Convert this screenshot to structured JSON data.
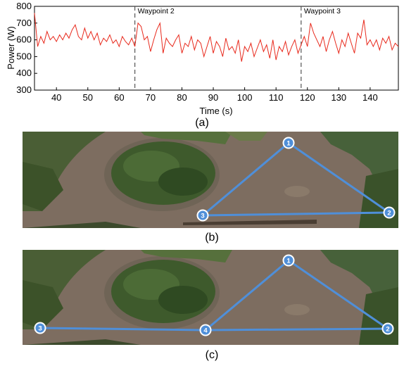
{
  "chart_data": {
    "type": "line",
    "ylabel": "Power (W)",
    "xlabel": "Time (s)",
    "xlim": [
      33,
      149
    ],
    "ylim": [
      300,
      800
    ],
    "xticks": [
      40,
      50,
      60,
      70,
      80,
      90,
      100,
      110,
      120,
      130,
      140
    ],
    "yticks": [
      300,
      400,
      500,
      600,
      700,
      800
    ],
    "grid": false,
    "series_color": "#e8291c",
    "series": [
      {
        "x": [
          33,
          34,
          35,
          36,
          37,
          38,
          39,
          40,
          41,
          42,
          43,
          44,
          45,
          46,
          47,
          48,
          49,
          50,
          51,
          52,
          53,
          54,
          55,
          56,
          57,
          58,
          59,
          60,
          61,
          62,
          63,
          64,
          65,
          66,
          67,
          68,
          69,
          70,
          71,
          72,
          73,
          74,
          75,
          76,
          77,
          78,
          79,
          80,
          81,
          82,
          83,
          84,
          85,
          86,
          87,
          88,
          89,
          90,
          91,
          92,
          93,
          94,
          95,
          96,
          97,
          98,
          99,
          100,
          101,
          102,
          103,
          104,
          105,
          106,
          107,
          108,
          109,
          110,
          111,
          112,
          113,
          114,
          115,
          116,
          117,
          118,
          119,
          120,
          121,
          122,
          123,
          124,
          125,
          126,
          127,
          128,
          129,
          130,
          131,
          132,
          133,
          134,
          135,
          136,
          137,
          138,
          139,
          140,
          141,
          142,
          143,
          144,
          145,
          146,
          147,
          148,
          149
        ],
        "y": [
          760,
          560,
          620,
          580,
          650,
          600,
          620,
          590,
          630,
          600,
          640,
          610,
          660,
          690,
          620,
          600,
          670,
          610,
          650,
          600,
          640,
          570,
          610,
          590,
          630,
          580,
          600,
          560,
          620,
          590,
          570,
          610,
          560,
          700,
          680,
          600,
          620,
          530,
          600,
          660,
          700,
          520,
          610,
          580,
          560,
          600,
          630,
          520,
          580,
          560,
          620,
          540,
          600,
          580,
          500,
          560,
          620,
          520,
          590,
          560,
          500,
          610,
          540,
          560,
          520,
          600,
          470,
          560,
          530,
          580,
          500,
          550,
          600,
          530,
          570,
          490,
          600,
          480,
          560,
          530,
          590,
          510,
          560,
          600,
          520,
          570,
          620,
          560,
          700,
          640,
          600,
          560,
          620,
          530,
          600,
          650,
          580,
          520,
          600,
          560,
          640,
          580,
          520,
          640,
          610,
          720,
          570,
          600,
          560,
          600,
          540,
          610,
          580,
          620,
          540,
          580,
          560
        ]
      }
    ],
    "annotations": [
      "Waypoint 2",
      "Waypoint 3"
    ],
    "annotation_x": [
      65,
      118
    ]
  },
  "captions": {
    "a": "(a)",
    "b": "(b)",
    "c": "(c)"
  },
  "maps": {
    "b": {
      "waypoints": [
        "1",
        "2",
        "3"
      ]
    },
    "c": {
      "waypoints": [
        "1",
        "2",
        "3",
        "4"
      ]
    }
  },
  "colors": {
    "route": "#4f8fd9",
    "ground": "#807062",
    "trees": "#3e5a2c"
  }
}
